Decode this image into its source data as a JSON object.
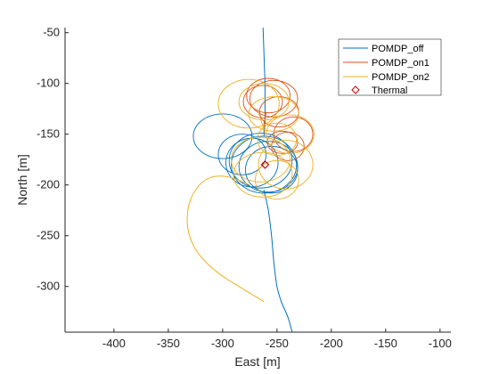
{
  "chart_data": {
    "type": "line",
    "title": "",
    "xlabel": "East [m]",
    "ylabel": "North [m]",
    "xlim": [
      -445,
      -90
    ],
    "ylim": [
      -345,
      -45
    ],
    "xticks": [
      -400,
      -350,
      -300,
      -250,
      -200,
      -150,
      -100
    ],
    "xtick_labels": [
      "-400",
      "-350",
      "-300",
      "-250",
      "-200",
      "-150",
      "-100"
    ],
    "yticks": [
      -50,
      -100,
      -150,
      -200,
      -250,
      -300
    ],
    "ytick_labels": [
      "-50",
      "-100",
      "-150",
      "-200",
      "-250",
      "-300"
    ],
    "grid": false,
    "legend_position": "top-right",
    "series": [
      {
        "name": "POMDP_off",
        "color": "#0072BD",
        "approach": [
          [
            -263,
            -40
          ],
          [
            -262,
            -70
          ],
          [
            -261,
            -100
          ],
          [
            -261,
            -125
          ],
          [
            -261,
            -140
          ],
          [
            -262,
            -152
          ]
        ],
        "circles": [
          [
            -262,
            -180,
            30,
            28
          ],
          [
            -258,
            -182,
            27,
            25
          ],
          [
            -265,
            -176,
            29,
            27
          ],
          [
            -273,
            -178,
            24,
            24
          ],
          [
            -300,
            -152,
            27,
            22
          ],
          [
            -282,
            -170,
            22,
            20
          ],
          [
            -255,
            -185,
            24,
            23
          ]
        ],
        "departure": [
          [
            -262,
            -205
          ],
          [
            -258,
            -225
          ],
          [
            -255,
            -250
          ],
          [
            -253,
            -275
          ],
          [
            -250,
            -300
          ],
          [
            -246,
            -315
          ],
          [
            -240,
            -330
          ],
          [
            -236,
            -345
          ]
        ]
      },
      {
        "name": "POMDP_on1",
        "color": "#D95319",
        "approach": [
          [
            -262,
            -150
          ],
          [
            -262,
            -140
          ],
          [
            -260,
            -128
          ]
        ],
        "circles": [
          [
            -258,
            -112,
            20,
            17
          ],
          [
            -253,
            -115,
            22,
            18
          ],
          [
            -263,
            -118,
            18,
            16
          ],
          [
            -248,
            -128,
            18,
            15
          ],
          [
            -235,
            -150,
            18,
            17
          ],
          [
            -245,
            -158,
            14,
            11
          ],
          [
            -240,
            -162,
            15,
            14
          ]
        ],
        "departure": []
      },
      {
        "name": "POMDP_on2",
        "color": "#EDB120",
        "approach": [
          [
            -262,
            -145
          ],
          [
            -265,
            -135
          ],
          [
            -268,
            -125
          ]
        ],
        "circles": [
          [
            -276,
            -120,
            28,
            24
          ],
          [
            -262,
            -118,
            23,
            18
          ],
          [
            -253,
            -130,
            23,
            17
          ],
          [
            -238,
            -150,
            22,
            19
          ],
          [
            -250,
            -155,
            18,
            16
          ],
          [
            -265,
            -175,
            27,
            22
          ],
          [
            -263,
            -190,
            27,
            22
          ],
          [
            -242,
            -180,
            25,
            24
          ],
          [
            -250,
            -195,
            20,
            19
          ]
        ],
        "departure": [
          [
            -275,
            -200
          ],
          [
            -295,
            -192
          ],
          [
            -312,
            -193
          ],
          [
            -325,
            -205
          ],
          [
            -332,
            -225
          ],
          [
            -331,
            -248
          ],
          [
            -322,
            -268
          ],
          [
            -305,
            -286
          ],
          [
            -285,
            -300
          ],
          [
            -262,
            -315
          ]
        ]
      }
    ],
    "thermal": {
      "name": "Thermal",
      "color": "#CC0000",
      "x": -261,
      "y": -180
    }
  }
}
